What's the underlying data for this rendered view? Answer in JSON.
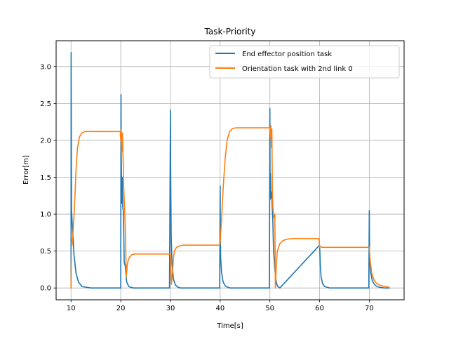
{
  "chart_data": {
    "type": "line",
    "title": "Task-Priority",
    "xlabel": "Time[s]",
    "ylabel": "Error[m]",
    "xlim": [
      7,
      77
    ],
    "ylim": [
      -0.16,
      3.35
    ],
    "xticks": [
      10,
      20,
      30,
      40,
      50,
      60,
      70
    ],
    "yticks": [
      0.0,
      0.5,
      1.0,
      1.5,
      2.0,
      2.5,
      3.0
    ],
    "xtick_labels": [
      "10",
      "20",
      "30",
      "40",
      "50",
      "60",
      "70"
    ],
    "ytick_labels": [
      "0.0",
      "0.5",
      "1.0",
      "1.5",
      "2.0",
      "2.5",
      "3.0"
    ],
    "grid": true,
    "legend_position": "top-right",
    "series": [
      {
        "name": "End effector position task",
        "color": "#1f77b4",
        "x": [
          10.0,
          10.02,
          10.1,
          10.3,
          10.6,
          11.0,
          11.5,
          12.2,
          13.0,
          14.0,
          20.0,
          20.05,
          20.1,
          20.2,
          20.3,
          20.4,
          20.5,
          20.6,
          20.7,
          20.9,
          21.2,
          21.6,
          22.0,
          22.5,
          23.0,
          29.8,
          30.0,
          30.05,
          30.15,
          30.3,
          30.6,
          31.0,
          31.5,
          32.0,
          39.9,
          40.0,
          40.05,
          40.1,
          40.3,
          40.6,
          41.0,
          41.5,
          42.0,
          49.9,
          50.0,
          50.05,
          50.1,
          50.2,
          50.35,
          50.5,
          50.6,
          50.7,
          50.8,
          51.0,
          51.2,
          51.4,
          51.6,
          52.0,
          60.0,
          60.05,
          60.15,
          60.3,
          60.6,
          61.0,
          61.5,
          62.0,
          69.9,
          70.0,
          70.05,
          70.1,
          70.3,
          70.6,
          71.0,
          71.5,
          72.0,
          73.0,
          74.0
        ],
        "values": [
          0.0,
          3.19,
          1.05,
          0.8,
          0.45,
          0.2,
          0.08,
          0.02,
          0.01,
          0.0,
          0.0,
          2.62,
          1.8,
          1.15,
          1.5,
          1.1,
          1.05,
          0.8,
          0.35,
          0.3,
          0.08,
          0.02,
          0.01,
          0.0,
          0.0,
          0.0,
          2.41,
          1.5,
          0.7,
          0.35,
          0.12,
          0.04,
          0.01,
          0.0,
          0.0,
          1.38,
          0.6,
          0.4,
          0.2,
          0.08,
          0.03,
          0.01,
          0.0,
          0.0,
          2.43,
          1.2,
          1.55,
          1.22,
          1.3,
          1.05,
          0.9,
          0.6,
          0.45,
          0.25,
          0.12,
          0.05,
          0.02,
          0.0,
          0.58,
          0.5,
          0.3,
          0.15,
          0.06,
          0.02,
          0.01,
          0.0,
          0.0,
          1.05,
          0.5,
          0.35,
          0.2,
          0.1,
          0.05,
          0.02,
          0.01,
          0.0,
          0.0
        ]
      },
      {
        "name": "Orientation task with 2nd link 0",
        "color": "#ff7f0e",
        "x": [
          10.0,
          10.1,
          10.2,
          10.4,
          10.7,
          11.0,
          11.3,
          11.7,
          12.2,
          12.8,
          13.5,
          14.5,
          19.9,
          20.0,
          20.1,
          20.2,
          20.35,
          20.5,
          20.6,
          20.8,
          21.0,
          21.1,
          21.3,
          21.5,
          21.8,
          22.2,
          22.8,
          23.5,
          29.9,
          30.0,
          30.2,
          30.4,
          30.6,
          30.8,
          31.2,
          31.8,
          32.5,
          39.9,
          40.0,
          40.3,
          40.6,
          41.0,
          41.4,
          41.9,
          42.5,
          43.2,
          44.0,
          49.9,
          50.0,
          50.1,
          50.2,
          50.3,
          50.4,
          50.5,
          50.6,
          50.8,
          51.0,
          51.1,
          51.3,
          51.5,
          52.0,
          52.6,
          53.3,
          54.5,
          59.9,
          60.0,
          60.2,
          60.5,
          61.0,
          61.5,
          62.0,
          69.9,
          70.0,
          70.2,
          70.5,
          71.0,
          71.5,
          72.0,
          72.5,
          73.0,
          74.0
        ],
        "values": [
          0.0,
          0.62,
          0.58,
          0.75,
          1.1,
          1.6,
          1.9,
          2.05,
          2.1,
          2.12,
          2.12,
          2.12,
          2.12,
          2.0,
          2.15,
          1.85,
          2.1,
          1.7,
          1.35,
          1.05,
          0.6,
          0.15,
          0.3,
          0.38,
          0.42,
          0.45,
          0.46,
          0.46,
          0.46,
          0.45,
          0.05,
          0.2,
          0.4,
          0.5,
          0.55,
          0.57,
          0.58,
          0.58,
          0.62,
          0.95,
          1.35,
          1.75,
          2.0,
          2.12,
          2.16,
          2.17,
          2.17,
          2.17,
          2.17,
          2.05,
          2.2,
          1.9,
          2.15,
          1.3,
          1.1,
          0.95,
          1.0,
          0.0,
          0.3,
          0.5,
          0.6,
          0.64,
          0.66,
          0.67,
          0.67,
          0.55,
          0.56,
          0.55,
          0.55,
          0.55,
          0.55,
          0.55,
          0.55,
          0.35,
          0.2,
          0.1,
          0.06,
          0.04,
          0.03,
          0.02,
          0.01
        ]
      }
    ]
  }
}
